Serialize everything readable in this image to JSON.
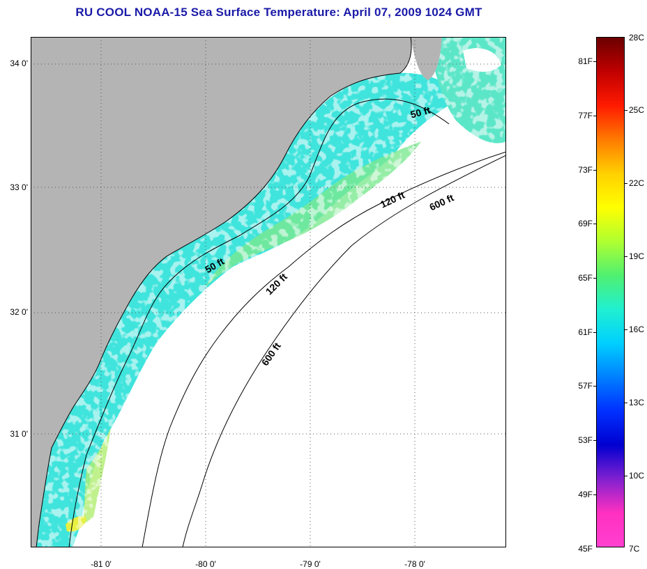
{
  "title": "RU COOL  NOAA-15  Sea Surface Temperature:  April 07, 2009 1024 GMT",
  "map": {
    "lon_range": [
      -81.66,
      -77.0
    ],
    "lat_range": [
      30.12,
      34.2
    ],
    "lat_ticks": [
      {
        "value": 31.0,
        "label": "31 0'"
      },
      {
        "value": 32.0,
        "label": "32 0'"
      },
      {
        "value": 33.0,
        "label": "33 0'"
      },
      {
        "value": 34.0,
        "label": "34 0'"
      }
    ],
    "lon_ticks": [
      {
        "value": -81.0,
        "label": "-81 0'"
      },
      {
        "value": -80.0,
        "label": "-80 0'"
      },
      {
        "value": -79.0,
        "label": "-79 0'"
      },
      {
        "value": -78.0,
        "label": "-78 0'"
      }
    ],
    "isobath_labels": [
      {
        "text": "50 ft"
      },
      {
        "text": "50 ft"
      },
      {
        "text": "120 ft"
      },
      {
        "text": "120 ft"
      },
      {
        "text": "600 ft"
      },
      {
        "text": "600 ft"
      }
    ],
    "colors": {
      "land": "#b4b4b4",
      "ocean_no_data": "#ffffff",
      "sst_dominant": "#33e0e0",
      "grid": "#555555"
    }
  },
  "colorbar": {
    "f_labels": [
      {
        "value": 81,
        "label": "81F"
      },
      {
        "value": 77,
        "label": "77F"
      },
      {
        "value": 73,
        "label": "73F"
      },
      {
        "value": 69,
        "label": "69F"
      },
      {
        "value": 65,
        "label": "65F"
      },
      {
        "value": 61,
        "label": "61F"
      },
      {
        "value": 57,
        "label": "57F"
      },
      {
        "value": 53,
        "label": "53F"
      },
      {
        "value": 49,
        "label": "49F"
      },
      {
        "value": 45,
        "label": "45F"
      }
    ],
    "c_labels": [
      {
        "value": 28,
        "label": "28C"
      },
      {
        "value": 25,
        "label": "25C"
      },
      {
        "value": 22,
        "label": "22C"
      },
      {
        "value": 19,
        "label": "19C"
      },
      {
        "value": 16,
        "label": "16C"
      },
      {
        "value": 13,
        "label": "13C"
      },
      {
        "value": 10,
        "label": "10C"
      },
      {
        "value": 7,
        "label": "7C"
      }
    ],
    "gradient": [
      "#6b0000",
      "#c00000",
      "#ff1a00",
      "#ff7a00",
      "#ffd000",
      "#ffff00",
      "#b0ff30",
      "#50f070",
      "#20f0d0",
      "#00d0ff",
      "#0080ff",
      "#0030ff",
      "#0000d0",
      "#8020d0",
      "#ff30c0",
      "#ff40d0"
    ]
  }
}
